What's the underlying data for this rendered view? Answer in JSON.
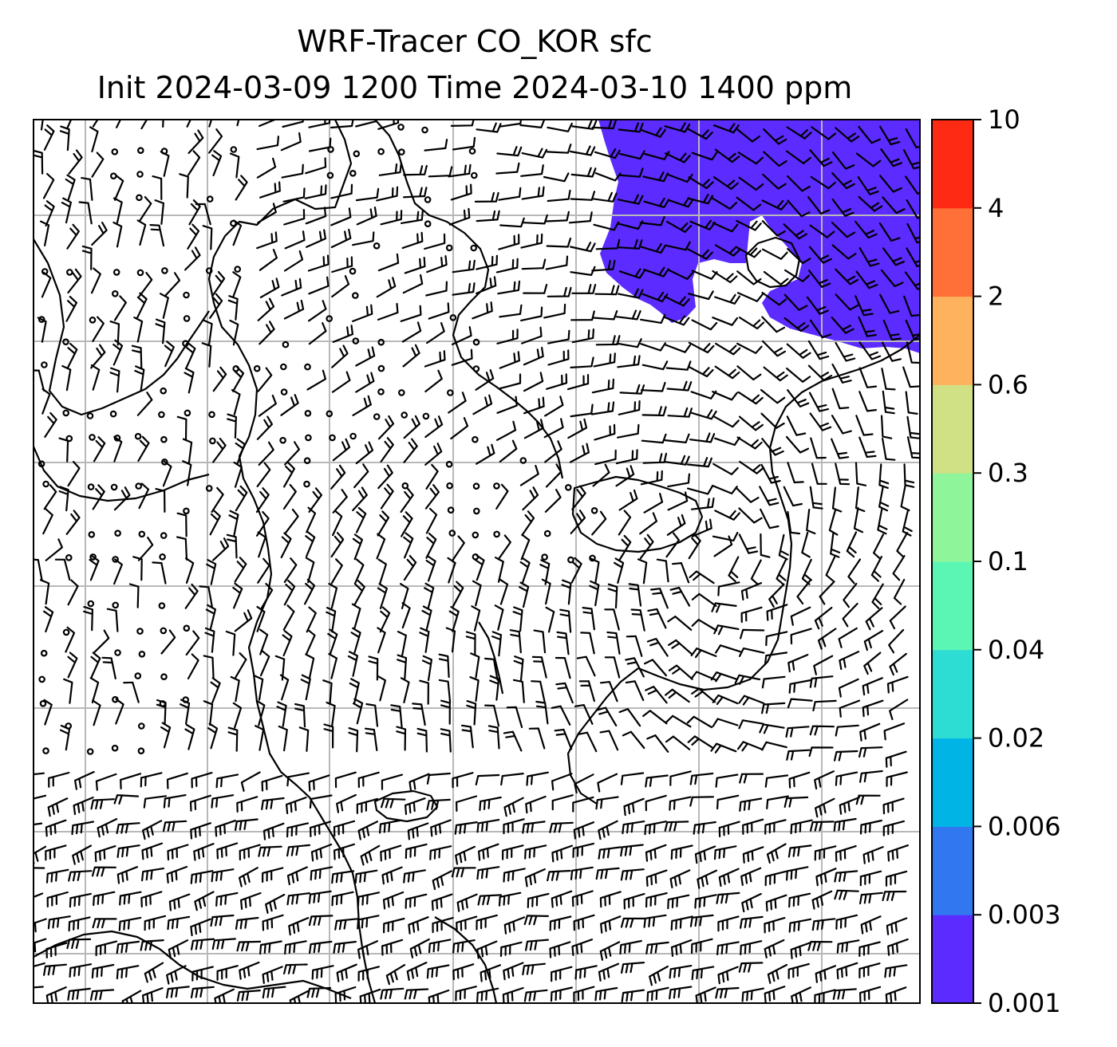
{
  "title": {
    "line1": "WRF-Tracer CO_KOR sfc",
    "line2": "Init 2024-03-09 1200 Time 2024-03-10 1400 ppm"
  },
  "colorbar": {
    "levels": [
      "0.001",
      "0.003",
      "0.006",
      "0.02",
      "0.04",
      "0.1",
      "0.3",
      "0.6",
      "2",
      "4",
      "10"
    ],
    "colors": [
      "#5b2bff",
      "#3077f0",
      "#00b4e6",
      "#2ddcd2",
      "#5cf6b4",
      "#8ff59a",
      "#cfe085",
      "#ffb25e",
      "#ff7038",
      "#ff2a14"
    ]
  },
  "map": {
    "gridlines": "on",
    "gridline_color": "#b8b8b8",
    "tracer_fill_color": "#5b2bff",
    "tracer_region": "upper-right",
    "wind_barbs": "on"
  }
}
